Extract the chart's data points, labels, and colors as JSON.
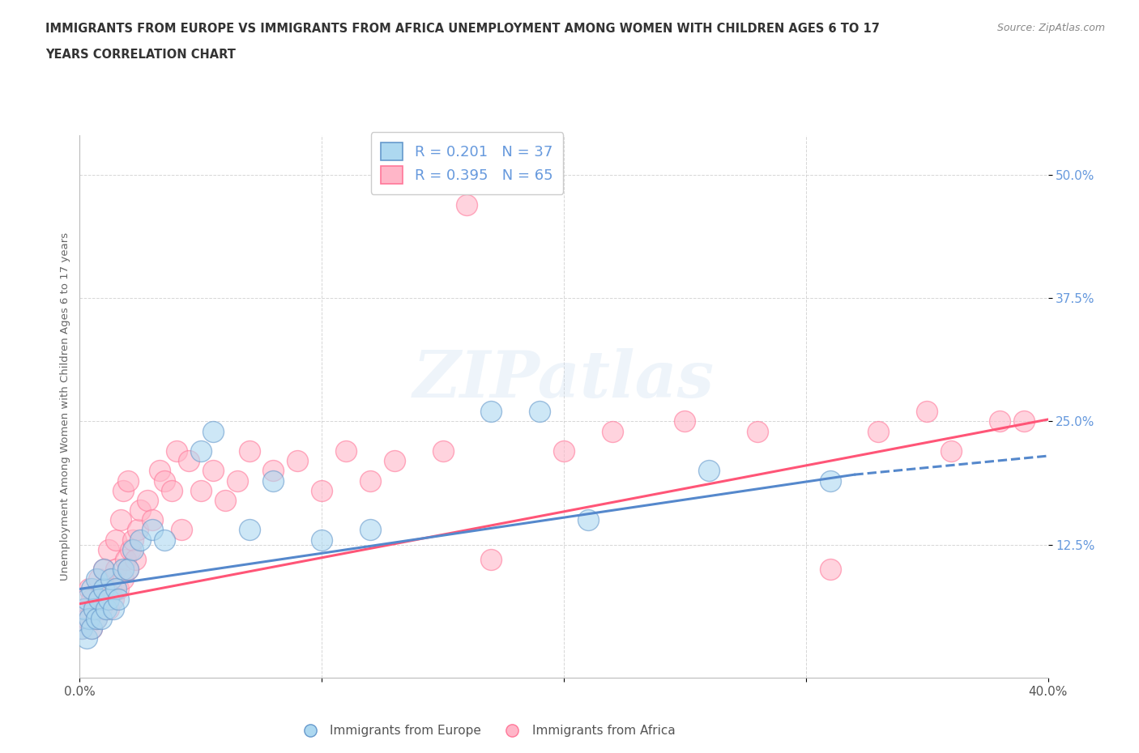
{
  "title_line1": "IMMIGRANTS FROM EUROPE VS IMMIGRANTS FROM AFRICA UNEMPLOYMENT AMONG WOMEN WITH CHILDREN AGES 6 TO 17",
  "title_line2": "YEARS CORRELATION CHART",
  "source": "Source: ZipAtlas.com",
  "ylabel": "Unemployment Among Women with Children Ages 6 to 17 years",
  "xlim": [
    0.0,
    0.4
  ],
  "ylim": [
    -0.01,
    0.54
  ],
  "ytick_positions": [
    0.125,
    0.25,
    0.375,
    0.5
  ],
  "ytick_labels": [
    "12.5%",
    "25.0%",
    "37.5%",
    "50.0%"
  ],
  "europe_R": 0.201,
  "europe_N": 37,
  "africa_R": 0.395,
  "africa_N": 65,
  "europe_color": "#ADD8F0",
  "africa_color": "#FFB6C8",
  "europe_edge_color": "#6699CC",
  "africa_edge_color": "#FF7799",
  "europe_line_color": "#5588CC",
  "africa_line_color": "#FF5577",
  "tick_label_color": "#6699DD",
  "europe_scatter_x": [
    0.001,
    0.002,
    0.003,
    0.003,
    0.004,
    0.005,
    0.005,
    0.006,
    0.007,
    0.007,
    0.008,
    0.009,
    0.01,
    0.01,
    0.011,
    0.012,
    0.013,
    0.014,
    0.015,
    0.016,
    0.018,
    0.02,
    0.022,
    0.025,
    0.03,
    0.035,
    0.05,
    0.055,
    0.07,
    0.08,
    0.1,
    0.12,
    0.17,
    0.19,
    0.21,
    0.26,
    0.31
  ],
  "europe_scatter_y": [
    0.04,
    0.06,
    0.03,
    0.07,
    0.05,
    0.08,
    0.04,
    0.06,
    0.05,
    0.09,
    0.07,
    0.05,
    0.08,
    0.1,
    0.06,
    0.07,
    0.09,
    0.06,
    0.08,
    0.07,
    0.1,
    0.1,
    0.12,
    0.13,
    0.14,
    0.13,
    0.22,
    0.24,
    0.14,
    0.19,
    0.13,
    0.14,
    0.26,
    0.26,
    0.15,
    0.2,
    0.19
  ],
  "africa_scatter_x": [
    0.001,
    0.002,
    0.003,
    0.004,
    0.005,
    0.005,
    0.006,
    0.007,
    0.008,
    0.008,
    0.009,
    0.01,
    0.01,
    0.011,
    0.012,
    0.012,
    0.013,
    0.013,
    0.014,
    0.015,
    0.015,
    0.016,
    0.017,
    0.018,
    0.018,
    0.019,
    0.02,
    0.02,
    0.021,
    0.022,
    0.023,
    0.024,
    0.025,
    0.028,
    0.03,
    0.033,
    0.035,
    0.038,
    0.04,
    0.042,
    0.045,
    0.05,
    0.055,
    0.06,
    0.065,
    0.07,
    0.08,
    0.09,
    0.1,
    0.11,
    0.12,
    0.13,
    0.15,
    0.16,
    0.17,
    0.2,
    0.22,
    0.25,
    0.28,
    0.31,
    0.33,
    0.35,
    0.36,
    0.38,
    0.39
  ],
  "africa_scatter_y": [
    0.04,
    0.06,
    0.05,
    0.08,
    0.04,
    0.07,
    0.06,
    0.05,
    0.07,
    0.09,
    0.06,
    0.08,
    0.1,
    0.07,
    0.06,
    0.12,
    0.08,
    0.09,
    0.07,
    0.1,
    0.13,
    0.08,
    0.15,
    0.09,
    0.18,
    0.11,
    0.1,
    0.19,
    0.12,
    0.13,
    0.11,
    0.14,
    0.16,
    0.17,
    0.15,
    0.2,
    0.19,
    0.18,
    0.22,
    0.14,
    0.21,
    0.18,
    0.2,
    0.17,
    0.19,
    0.22,
    0.2,
    0.21,
    0.18,
    0.22,
    0.19,
    0.21,
    0.22,
    0.47,
    0.11,
    0.22,
    0.24,
    0.25,
    0.24,
    0.1,
    0.24,
    0.26,
    0.22,
    0.25,
    0.25
  ],
  "watermark_text": "ZIPatlas",
  "legend_europe_label": "Immigrants from Europe",
  "legend_africa_label": "Immigrants from Africa",
  "background_color": "#FFFFFF",
  "grid_color": "#CCCCCC",
  "title_color": "#333333",
  "source_color": "#888888"
}
